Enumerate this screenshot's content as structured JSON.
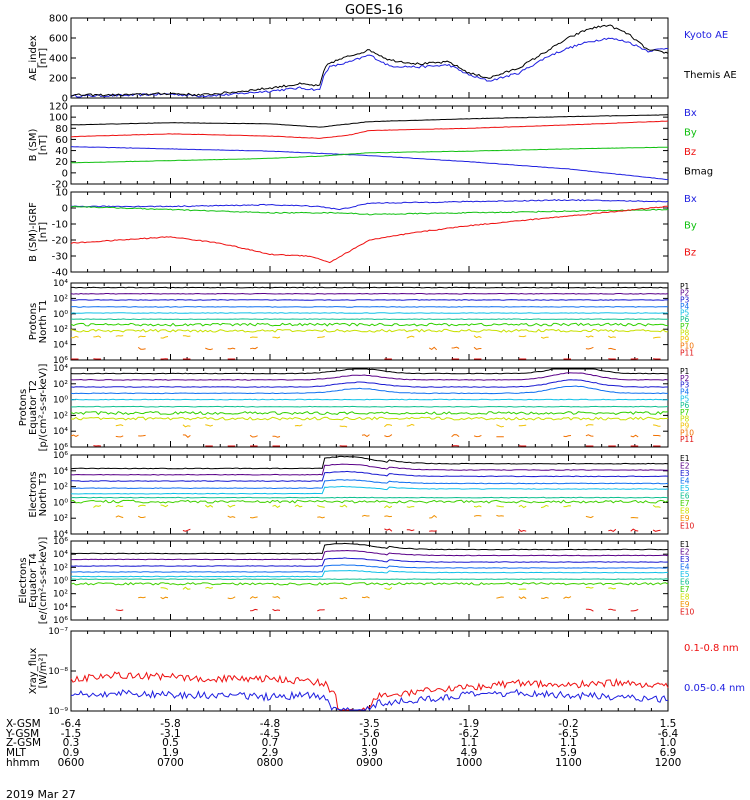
{
  "title": "GOES-16",
  "date": "2019 Mar 27",
  "colors": {
    "black": "#000000",
    "blue": "#1f1fe0",
    "green": "#10c010",
    "red": "#ee1010",
    "p_colors": [
      "#000000",
      "#5a0088",
      "#1818d0",
      "#1070f0",
      "#10c0e8",
      "#10c090",
      "#30d000",
      "#c8e000",
      "#f0c000",
      "#f07000",
      "#e01010"
    ],
    "e_colors": [
      "#000000",
      "#5a0088",
      "#1818d0",
      "#1070f0",
      "#10c0e8",
      "#10c090",
      "#40d000",
      "#d0e000",
      "#f09000",
      "#e01010"
    ]
  },
  "footer": {
    "row_labels": [
      "X-GSM",
      "Y-GSM",
      "Z-GSM",
      "MLT",
      "hhmm"
    ],
    "columns": [
      [
        "-6.4",
        "-1.5",
        "0.3",
        "0.9",
        "0600"
      ],
      [
        "-5.8",
        "-3.1",
        "0.5",
        "1.9",
        "0700"
      ],
      [
        "-4.8",
        "-4.5",
        "0.7",
        "2.9",
        "0800"
      ],
      [
        "-3.5",
        "-5.6",
        "1.0",
        "3.9",
        "0900"
      ],
      [
        "-1.9",
        "-6.2",
        "1.1",
        "4.9",
        "1000"
      ],
      [
        "-0.2",
        "-6.5",
        "1.1",
        "5.9",
        "1100"
      ],
      [
        "1.5",
        "-6.4",
        "1.0",
        "6.9",
        "1200"
      ]
    ]
  },
  "chart_data": [
    {
      "type": "line",
      "ylabel": "AE_index\n[nT]",
      "ylim": [
        0,
        800
      ],
      "y_ticks": [
        "0",
        "200",
        "400",
        "600",
        "800"
      ],
      "legend": [
        "Kyoto AE",
        "Themis AE"
      ],
      "series": [
        {
          "name": "Kyoto AE",
          "color": "blue",
          "x": [
            6.0,
            6.5,
            7.0,
            7.3,
            7.6,
            8.0,
            8.3,
            8.5,
            8.55,
            8.6,
            8.8,
            9.0,
            9.2,
            9.5,
            9.8,
            10.0,
            10.2,
            10.5,
            10.8,
            11.0,
            11.2,
            11.4,
            11.6,
            11.8,
            12.0
          ],
          "y": [
            20,
            25,
            40,
            20,
            35,
            70,
            100,
            80,
            250,
            310,
            360,
            430,
            320,
            310,
            330,
            230,
            170,
            250,
            420,
            500,
            560,
            600,
            560,
            470,
            500
          ]
        },
        {
          "name": "Themis AE",
          "color": "black",
          "x": [
            6.0,
            6.5,
            7.0,
            7.3,
            7.6,
            8.0,
            8.3,
            8.5,
            8.55,
            8.6,
            8.8,
            9.0,
            9.2,
            9.5,
            9.8,
            10.0,
            10.2,
            10.5,
            10.8,
            11.0,
            11.2,
            11.4,
            11.6,
            11.8,
            12.0
          ],
          "y": [
            30,
            30,
            45,
            30,
            55,
            100,
            140,
            120,
            300,
            350,
            420,
            480,
            380,
            340,
            360,
            250,
            200,
            300,
            480,
            600,
            690,
            730,
            640,
            480,
            450
          ]
        }
      ]
    },
    {
      "type": "line",
      "ylabel": "B (SM)\n[nT]",
      "ylim": [
        -20,
        120
      ],
      "y_ticks": [
        "-20",
        "0",
        "20",
        "40",
        "60",
        "80",
        "100",
        "120"
      ],
      "legend": [
        "Bx",
        "By",
        "Bz",
        "Bmag"
      ],
      "series": [
        {
          "name": "Bx",
          "color": "blue",
          "x": [
            6,
            7,
            8,
            8.5,
            9,
            10,
            11,
            12
          ],
          "y": [
            47,
            43,
            39,
            35,
            31,
            20,
            7,
            -12
          ]
        },
        {
          "name": "By",
          "color": "green",
          "x": [
            6,
            7,
            8,
            8.5,
            9,
            10,
            11,
            12
          ],
          "y": [
            18,
            22,
            26,
            30,
            36,
            39,
            43,
            46
          ]
        },
        {
          "name": "Bz",
          "color": "red",
          "x": [
            6,
            7,
            8,
            8.5,
            8.8,
            9,
            10,
            11,
            12
          ],
          "y": [
            65,
            70,
            66,
            62,
            68,
            76,
            80,
            86,
            93
          ]
        },
        {
          "name": "Bmag",
          "color": "black",
          "x": [
            6,
            7,
            8,
            8.5,
            8.8,
            9,
            10,
            11,
            12
          ],
          "y": [
            86,
            90,
            88,
            82,
            88,
            92,
            97,
            101,
            104
          ]
        }
      ]
    },
    {
      "type": "line",
      "ylabel": "B (SM)-IGRF\n[nT]",
      "ylim": [
        -40,
        10
      ],
      "y_ticks": [
        "-40",
        "-30",
        "-20",
        "-10",
        "0",
        "10"
      ],
      "legend": [
        "Bx",
        "By",
        "Bz"
      ],
      "series": [
        {
          "name": "Bx",
          "color": "blue",
          "x": [
            6,
            7,
            8,
            8.5,
            8.7,
            9,
            10,
            11,
            12
          ],
          "y": [
            1,
            1,
            2,
            1,
            -1,
            3,
            4,
            5,
            4
          ]
        },
        {
          "name": "By",
          "color": "green",
          "x": [
            6,
            7,
            8,
            8.5,
            8.7,
            9,
            10,
            11,
            12
          ],
          "y": [
            1,
            -1,
            -3,
            -3,
            -3,
            -4,
            -3,
            -2,
            -1
          ]
        },
        {
          "name": "Bz",
          "color": "red",
          "x": [
            6,
            6.5,
            7,
            7.5,
            8,
            8.4,
            8.6,
            8.8,
            9,
            9.5,
            10,
            10.5,
            11,
            11.5,
            12
          ],
          "y": [
            -22,
            -20,
            -18,
            -22,
            -29,
            -30,
            -34,
            -27,
            -20,
            -15,
            -11,
            -8,
            -5,
            -2,
            1
          ]
        }
      ]
    },
    {
      "type": "line",
      "ylabel": "Protons\nNorth T1",
      "log_scale": true,
      "ylim_exp": [
        -6,
        4
      ],
      "y_ticks": [
        "10⁶",
        "10⁴",
        "10²",
        "10⁰",
        "10²",
        "10⁴",
        "10⁶"
      ],
      "legend": [
        "P1",
        "P2",
        "P3",
        "P4",
        "P5",
        "P6",
        "P7",
        "P8",
        "P9",
        "P10",
        "P11"
      ],
      "levels_exp": [
        3.4,
        2.6,
        1.8,
        0.9,
        0.1,
        -0.7,
        -1.4,
        -2.2,
        -3.0,
        -4.5,
        -6.0
      ]
    },
    {
      "type": "line",
      "ylabel": "Protons\nEquator T2\n[p/(cm²-s-sr-keV)]",
      "log_scale": true,
      "ylim_exp": [
        -6,
        4
      ],
      "y_ticks": [
        "10⁶",
        "10⁴",
        "10²",
        "10⁰",
        "10²",
        "10⁴",
        "10⁶"
      ],
      "legend": [
        "P1",
        "P2",
        "P3",
        "P4",
        "P5",
        "P6",
        "P7",
        "P8",
        "P9",
        "P10",
        "P11"
      ],
      "levels_exp": [
        3.3,
        2.5,
        1.6,
        0.8,
        0.0,
        -0.9,
        -1.7,
        -2.4,
        -3.3,
        -4.6,
        -6.0
      ]
    },
    {
      "type": "line",
      "ylabel": "Electrons\nNorth T3",
      "log_scale": true,
      "ylim_exp": [
        -4,
        6
      ],
      "y_ticks": [
        "10⁴",
        "10²",
        "10⁰",
        "10²",
        "10⁴",
        "10⁶"
      ],
      "legend": [
        "E1",
        "E2",
        "E3",
        "E4",
        "E5",
        "E6",
        "E7",
        "E8",
        "E9",
        "E10"
      ],
      "levels_exp": [
        4.6,
        3.8,
        3.0,
        2.1,
        1.4,
        0.6,
        0.1,
        -0.5,
        -1.8,
        -3.5
      ]
    },
    {
      "type": "line",
      "ylabel": "Electrons\nEquator T4\n[e/(cm²-s-sr-keV)]",
      "log_scale": true,
      "ylim_exp": [
        -6,
        6
      ],
      "y_ticks": [
        "10⁶",
        "10⁴",
        "10²",
        "10⁰",
        "10²",
        "10⁴",
        "10⁶"
      ],
      "legend": [
        "E1",
        "E2",
        "E3",
        "E4",
        "E5",
        "E6",
        "E7",
        "E8",
        "E9",
        "E10"
      ],
      "levels_exp": [
        4.4,
        3.5,
        2.5,
        1.6,
        0.9,
        0.2,
        -0.5,
        -1.2,
        -2.6,
        -4.5
      ]
    },
    {
      "type": "line",
      "ylabel": "Xray_flux\n[W/m²]",
      "log_scale": true,
      "ylim_exp": [
        -9,
        -7
      ],
      "y_ticks": [
        "10⁻⁹",
        "10⁻⁸",
        "10⁻⁷"
      ],
      "legend": [
        "0.1-0.8 nm",
        "0.05-0.4 nm"
      ],
      "series": [
        {
          "name": "0.1-0.8 nm",
          "color": "red",
          "x": [
            6,
            6.5,
            7,
            7.5,
            8,
            8.4,
            8.55,
            8.65,
            8.7,
            8.8,
            8.95,
            9.1,
            9.3,
            9.6,
            10,
            10.5,
            11,
            11.5,
            12
          ],
          "y_exp": [
            -8.2,
            -8.1,
            -8.15,
            -8.2,
            -8.2,
            -8.25,
            -8.3,
            -8.6,
            -9.0,
            -9.0,
            -9.0,
            -8.6,
            -8.6,
            -8.5,
            -8.4,
            -8.3,
            -8.35,
            -8.3,
            -8.4
          ]
        },
        {
          "name": "0.05-0.4 nm",
          "color": "blue",
          "x": [
            6,
            6.5,
            7,
            7.5,
            8,
            8.4,
            8.55,
            8.65,
            8.7,
            8.8,
            8.95,
            9.1,
            9.3,
            9.6,
            10,
            10.5,
            11,
            11.5,
            12
          ],
          "y_exp": [
            -8.6,
            -8.55,
            -8.6,
            -8.6,
            -8.65,
            -8.6,
            -8.7,
            -9.0,
            -9.0,
            -9.0,
            -9.0,
            -8.8,
            -8.75,
            -8.7,
            -8.6,
            -8.55,
            -8.6,
            -8.65,
            -8.7
          ]
        }
      ]
    }
  ]
}
